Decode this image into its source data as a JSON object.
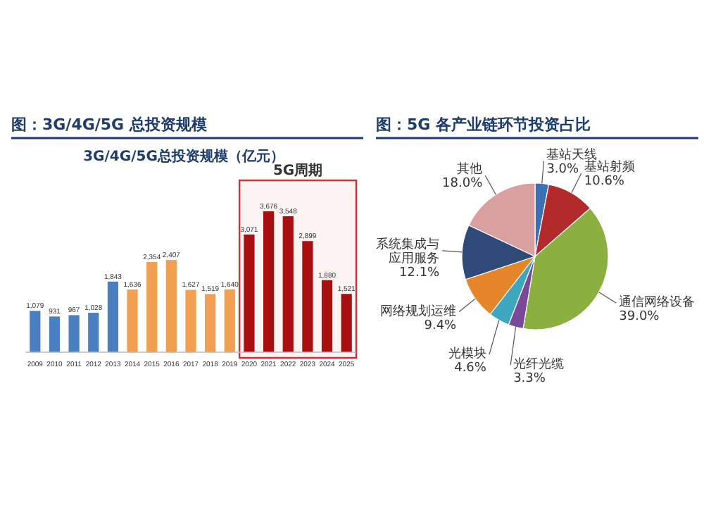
{
  "chart_data": [
    {
      "type": "bar",
      "title": "图：3G/4G/5G 总投资规模",
      "subtitle": "3G/4G/5G总投资规模（亿元）",
      "categories": [
        "2009",
        "2010",
        "2011",
        "2012",
        "2013",
        "2014",
        "2015",
        "2016",
        "2017",
        "2018",
        "2019",
        "2020",
        "2021",
        "2022",
        "2023",
        "2024",
        "2025"
      ],
      "values": [
        1079,
        931,
        967,
        1028,
        1843,
        1636,
        2354,
        2407,
        1627,
        1519,
        1640,
        3071,
        3676,
        3548,
        2899,
        1880,
        1521
      ],
      "value_labels": [
        "1,079",
        "931",
        "967",
        "1,028",
        "1,843",
        "1,636",
        "2,354",
        "2,407",
        "1,627",
        "1,519",
        "1,640",
        "3,071",
        "3,676",
        "3,548",
        "2,899",
        "1,880",
        "1,521"
      ],
      "colors": [
        "#4a7fc0",
        "#4a7fc0",
        "#4a7fc0",
        "#4a7fc0",
        "#4a7fc0",
        "#f0a050",
        "#f0a050",
        "#f0a050",
        "#f0a050",
        "#f0a050",
        "#f0a050",
        "#a80f10",
        "#a80f10",
        "#a80f10",
        "#a80f10",
        "#a80f10",
        "#a80f10"
      ],
      "bands": [
        {
          "axis": "x",
          "from": "2020",
          "to": "2025",
          "label": "5G周期",
          "color": "#d03030"
        }
      ]
    },
    {
      "type": "pie",
      "title": "图：5G 各产业链环节投资占比",
      "categories": [
        "基站天线",
        "基站射频",
        "通信网络设备",
        "光纤光缆",
        "光模块",
        "网络规划运维",
        "系统集成与应用服务",
        "其他"
      ],
      "values": [
        3.0,
        10.6,
        39.0,
        3.3,
        4.6,
        9.4,
        12.1,
        18.0
      ],
      "value_labels": [
        "3.0%",
        "10.6%",
        "39.0%",
        "3.3%",
        "4.6%",
        "9.4%",
        "12.1%",
        "18.0%"
      ],
      "colors": [
        "#3b6fb6",
        "#b22a2a",
        "#8cb040",
        "#7a4a9a",
        "#3fa6c0",
        "#e6862a",
        "#2f4a78",
        "#d9a0a0"
      ]
    }
  ]
}
